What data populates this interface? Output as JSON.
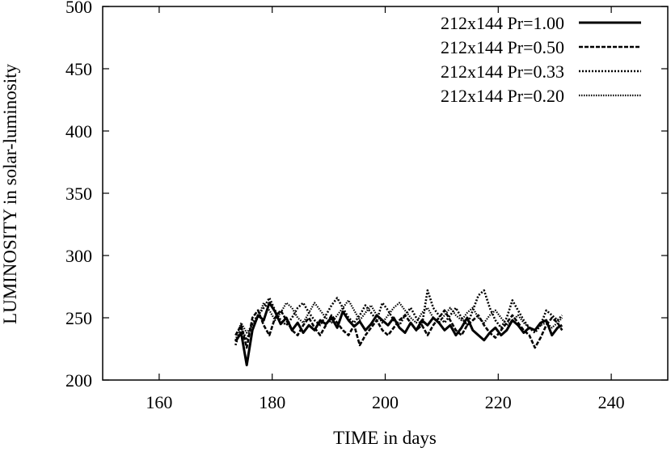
{
  "chart_data": {
    "type": "line",
    "xlabel": "TIME in days",
    "ylabel": "LUMINOSITY in solar-luminosity",
    "xlim": [
      150,
      250
    ],
    "ylim": [
      200,
      500
    ],
    "xticks": [
      160,
      180,
      200,
      220,
      240
    ],
    "yticks": [
      200,
      250,
      300,
      350,
      400,
      450,
      500
    ],
    "x_tick_labels": [
      "160",
      "180",
      "200",
      "220",
      "240"
    ],
    "y_tick_labels": [
      "200",
      "250",
      "300",
      "350",
      "400",
      "450",
      "500"
    ],
    "grid": false,
    "legend_position": "top-right",
    "series": [
      {
        "name": "212x144  Pr=1.00",
        "dash": "",
        "stroke_width": 3,
        "x": [
          173.5,
          174.5,
          175.5,
          176.5,
          177.5,
          178.5,
          179.5,
          180.5,
          181.5,
          182.5,
          183.5,
          184.5,
          185.5,
          186.5,
          187.5,
          188.5,
          189.5,
          190.5,
          191.5,
          192.5,
          193.5,
          194.5,
          195.5,
          196.5,
          197.5,
          198.5,
          199.5,
          200.5,
          201.5,
          202.5,
          203.5,
          204.5,
          205.5,
          206.5,
          207.5,
          208.5,
          209.5,
          210.5,
          211.5,
          212.5,
          213.5,
          214.5,
          215.5,
          216.5,
          217.5,
          218.5,
          219.5,
          220.5,
          221.5,
          222.5,
          223.5,
          224.5,
          225.5,
          226.5,
          227.5,
          228.5,
          229.5,
          230.5,
          231.3
        ],
        "values": [
          231,
          238,
          212,
          240,
          252,
          248,
          262,
          255,
          245,
          250,
          240,
          246,
          238,
          244,
          240,
          248,
          245,
          250,
          242,
          255,
          248,
          243,
          247,
          240,
          245,
          252,
          248,
          244,
          250,
          242,
          238,
          246,
          240,
          248,
          244,
          250,
          246,
          240,
          244,
          236,
          242,
          250,
          240,
          236,
          232,
          238,
          242,
          236,
          240,
          248,
          244,
          238,
          242,
          240,
          246,
          248,
          236,
          242,
          244
        ]
      },
      {
        "name": "212x144  Pr=0.50",
        "dash": "5,2",
        "stroke_width": 2.6,
        "x": [
          173.5,
          174.5,
          175.5,
          176.5,
          177.5,
          178.5,
          179.5,
          180.5,
          181.5,
          182.5,
          183.5,
          184.5,
          185.5,
          186.5,
          187.5,
          188.5,
          189.5,
          190.5,
          191.5,
          192.5,
          193.5,
          194.5,
          195.5,
          196.5,
          197.5,
          198.5,
          199.5,
          200.5,
          201.5,
          202.5,
          203.5,
          204.5,
          205.5,
          206.5,
          207.5,
          208.5,
          209.5,
          210.5,
          211.5,
          212.5,
          213.5,
          214.5,
          215.5,
          216.5,
          217.5,
          218.5,
          219.5,
          220.5,
          221.5,
          222.5,
          223.5,
          224.5,
          225.5,
          226.5,
          227.5,
          228.5,
          229.5,
          230.5,
          231.3
        ],
        "values": [
          236,
          244,
          226,
          250,
          256,
          244,
          236,
          250,
          256,
          248,
          240,
          236,
          244,
          250,
          242,
          236,
          244,
          252,
          246,
          240,
          236,
          244,
          228,
          236,
          242,
          248,
          240,
          236,
          242,
          248,
          252,
          246,
          240,
          244,
          236,
          244,
          250,
          256,
          248,
          240,
          236,
          244,
          248,
          252,
          244,
          238,
          234,
          240,
          246,
          252,
          246,
          240,
          236,
          226,
          234,
          244,
          250,
          246,
          240
        ]
      },
      {
        "name": "212x144  Pr=0.33",
        "dash": "2,2",
        "stroke_width": 2.6,
        "x": [
          173.5,
          174.5,
          175.5,
          176.5,
          177.5,
          178.5,
          179.5,
          180.5,
          181.5,
          182.5,
          183.5,
          184.5,
          185.5,
          186.5,
          187.5,
          188.5,
          189.5,
          190.5,
          191.5,
          192.5,
          193.5,
          194.5,
          195.5,
          196.5,
          197.5,
          198.5,
          199.5,
          200.5,
          201.5,
          202.5,
          203.5,
          204.5,
          205.5,
          206.5,
          207.5,
          208.5,
          209.5,
          210.5,
          211.5,
          212.5,
          213.5,
          214.5,
          215.5,
          216.5,
          217.5,
          218.5,
          219.5,
          220.5,
          221.5,
          222.5,
          223.5,
          224.5,
          225.5,
          226.5,
          227.5,
          228.5,
          229.5,
          230.5,
          231.3
        ],
        "values": [
          228,
          242,
          232,
          246,
          252,
          258,
          266,
          256,
          248,
          244,
          250,
          258,
          262,
          254,
          248,
          244,
          252,
          260,
          266,
          258,
          250,
          246,
          252,
          260,
          254,
          248,
          262,
          256,
          248,
          244,
          252,
          258,
          250,
          244,
          272,
          258,
          252,
          246,
          252,
          258,
          250,
          244,
          256,
          268,
          272,
          258,
          248,
          242,
          250,
          264,
          256,
          248,
          242,
          238,
          244,
          256,
          252,
          248,
          252
        ]
      },
      {
        "name": "212x144  Pr=0.20",
        "dash": "1.5,1.5",
        "stroke_width": 2.2,
        "x": [
          173.5,
          174.5,
          175.5,
          176.5,
          177.5,
          178.5,
          179.5,
          180.5,
          181.5,
          182.5,
          183.5,
          184.5,
          185.5,
          186.5,
          187.5,
          188.5,
          189.5,
          190.5,
          191.5,
          192.5,
          193.5,
          194.5,
          195.5,
          196.5,
          197.5,
          198.5,
          199.5,
          200.5,
          201.5,
          202.5,
          203.5,
          204.5,
          205.5,
          206.5,
          207.5,
          208.5,
          209.5,
          210.5,
          211.5,
          212.5,
          213.5,
          214.5,
          215.5,
          216.5,
          217.5,
          218.5,
          219.5,
          220.5,
          221.5,
          222.5,
          223.5,
          224.5,
          225.5,
          226.5,
          227.5,
          228.5,
          229.5,
          230.5,
          231.3
        ],
        "values": [
          232,
          246,
          238,
          244,
          250,
          262,
          256,
          248,
          254,
          262,
          258,
          250,
          246,
          254,
          262,
          256,
          250,
          246,
          252,
          258,
          264,
          256,
          248,
          254,
          260,
          252,
          246,
          252,
          258,
          262,
          256,
          250,
          246,
          254,
          258,
          250,
          246,
          252,
          258,
          252,
          248,
          254,
          258,
          250,
          246,
          252,
          256,
          250,
          244,
          248,
          252,
          246,
          242,
          240,
          244,
          246,
          242,
          246,
          250
        ]
      }
    ]
  }
}
